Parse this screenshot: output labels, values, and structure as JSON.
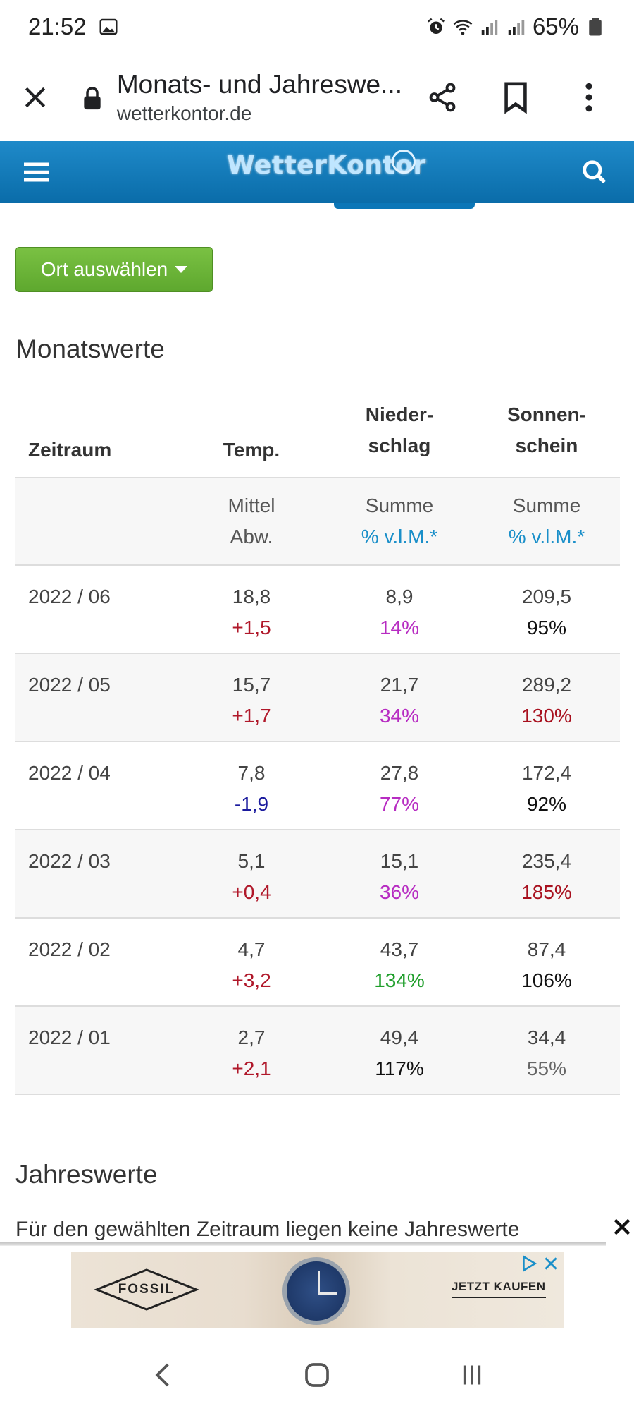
{
  "status_bar": {
    "time": "21:52",
    "battery": "65%",
    "icons": [
      "image-icon",
      "alarm-icon",
      "wifi-icon",
      "signal-icon",
      "signal-icon",
      "battery-icon"
    ]
  },
  "browser": {
    "page_title": "Monats- und Jahreswe...",
    "domain": "wetterkontor.de",
    "icons": [
      "close-icon",
      "lock-icon",
      "share-icon",
      "bookmark-icon",
      "more-vert-icon"
    ]
  },
  "site_header": {
    "logo_text": "WetterKontor",
    "icons": [
      "hamburger-menu-icon",
      "search-icon"
    ]
  },
  "location_button": {
    "label": "Ort auswählen"
  },
  "monthly": {
    "heading": "Monatswerte",
    "headers": {
      "zeitraum": "Zeitraum",
      "temp": "Temp.",
      "nieder_1": "Nieder-",
      "nieder_2": "schlag",
      "sonnen_1": "Sonnen-",
      "sonnen_2": "schein"
    },
    "subheaders": {
      "temp_1": "Mittel",
      "temp_2": "Abw.",
      "nieder_1": "Summe",
      "nieder_2": "% v.l.M.*",
      "sonnen_1": "Summe",
      "sonnen_2": "% v.l.M.*"
    },
    "rows": [
      {
        "period": "2022 / 06",
        "temp": "18,8",
        "temp_dev": "+1,5",
        "precip": "8,9",
        "precip_pct": "14%",
        "sun": "209,5",
        "sun_pct": "95%"
      },
      {
        "period": "2022 / 05",
        "temp": "15,7",
        "temp_dev": "+1,7",
        "precip": "21,7",
        "precip_pct": "34%",
        "sun": "289,2",
        "sun_pct": "130%"
      },
      {
        "period": "2022 / 04",
        "temp": "7,8",
        "temp_dev": "-1,9",
        "precip": "27,8",
        "precip_pct": "77%",
        "sun": "172,4",
        "sun_pct": "92%"
      },
      {
        "period": "2022 / 03",
        "temp": "5,1",
        "temp_dev": "+0,4",
        "precip": "15,1",
        "precip_pct": "36%",
        "sun": "235,4",
        "sun_pct": "185%"
      },
      {
        "period": "2022 / 02",
        "temp": "4,7",
        "temp_dev": "+3,2",
        "precip": "43,7",
        "precip_pct": "134%",
        "sun": "87,4",
        "sun_pct": "106%"
      },
      {
        "period": "2022 / 01",
        "temp": "2,7",
        "temp_dev": "+2,1",
        "precip": "49,4",
        "precip_pct": "117%",
        "sun": "34,4",
        "sun_pct": "55%"
      }
    ]
  },
  "yearly": {
    "heading": "Jahreswerte",
    "text": "Für den gewählten Zeitraum liegen keine Jahreswerte"
  },
  "ad": {
    "brand": "FOSSIL",
    "cta": "JETZT KAUFEN",
    "icons": [
      "ad-close-icon",
      "adchoices-icon",
      "ad-x-icon"
    ]
  },
  "nav_bar": {
    "icons": [
      "back-icon",
      "home-icon",
      "recents-icon"
    ]
  },
  "colors": {
    "header_blue": "#0a6ca9",
    "button_green": "#6cb33a",
    "link_blue": "#1a8fc9",
    "positive_red": "#b0182a",
    "negative_blue": "#1b1b9e",
    "dry_magenta": "#b72cc2",
    "wet_green": "#1e9e2a"
  }
}
